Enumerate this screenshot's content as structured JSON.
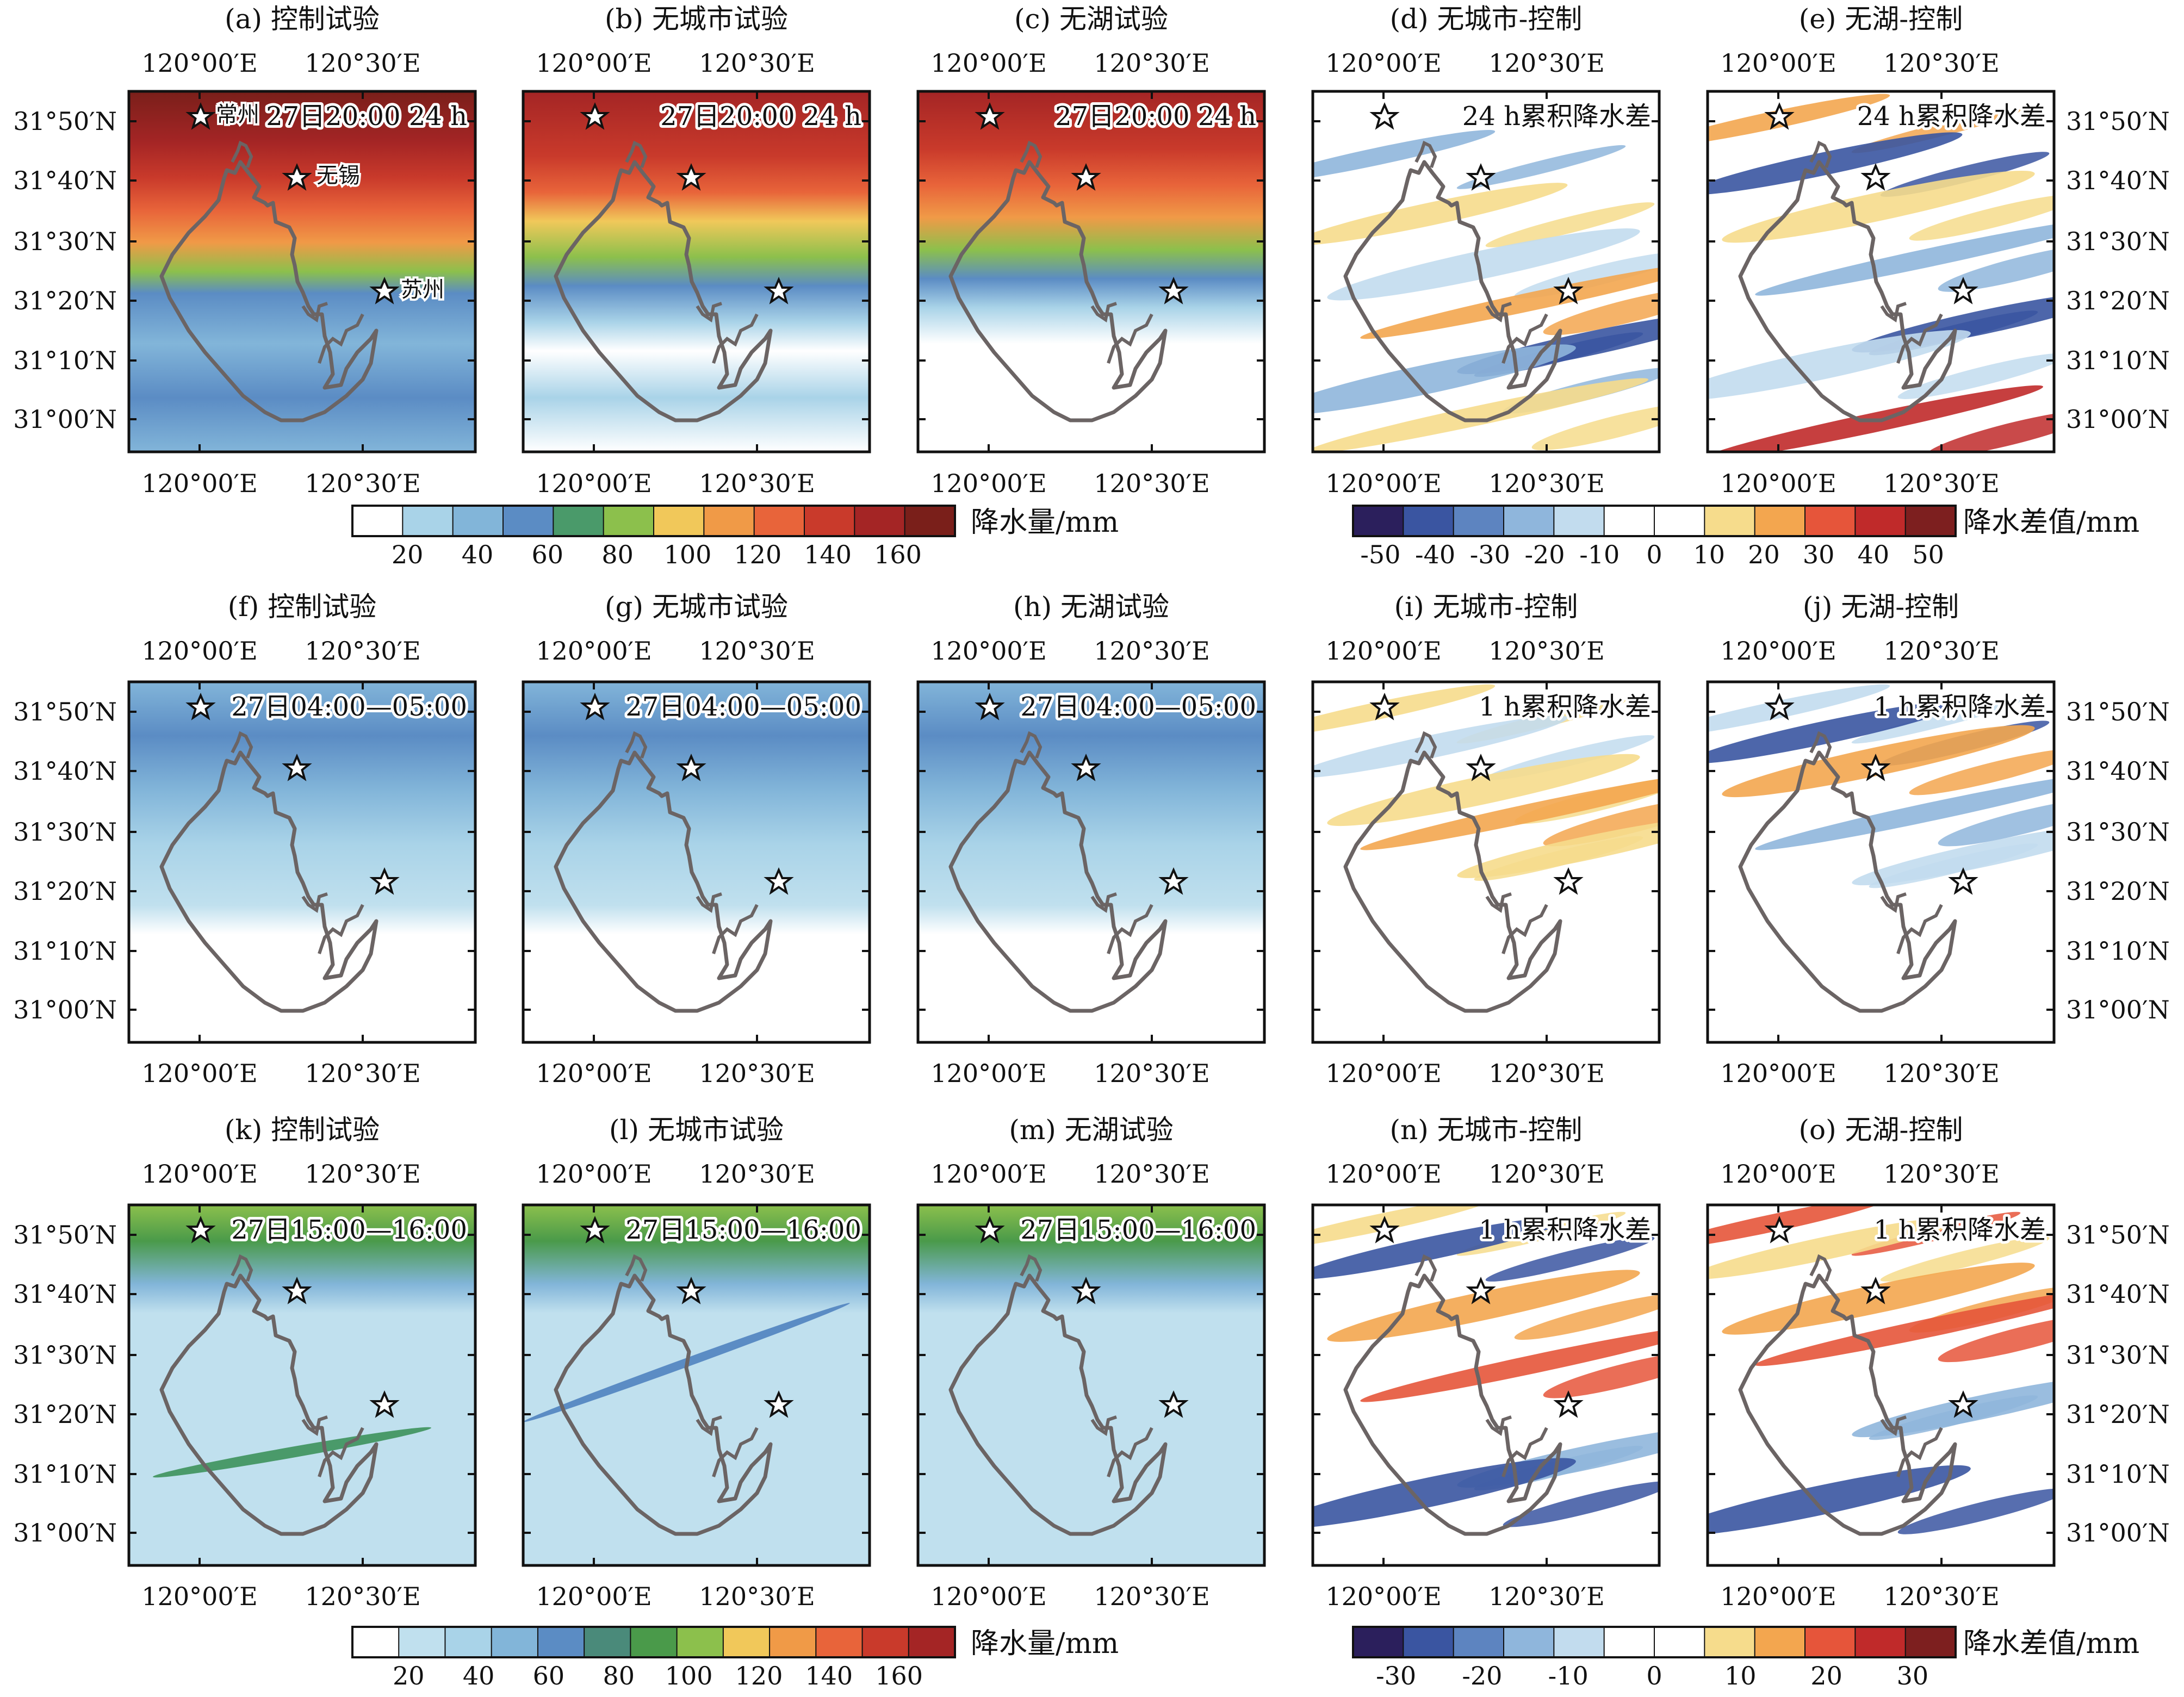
{
  "figure": {
    "row_coords": {
      "lon_ticks": [
        "120°00′E",
        "120°30′E"
      ],
      "lat_ticks": [
        "31°50′N",
        "31°40′N",
        "31°30′N",
        "31°20′N",
        "31°10′N",
        "31°00′N"
      ]
    },
    "panels": [
      {
        "id": "a",
        "title": "(a) 控制试验",
        "annotation": "27日20:00 24 h",
        "kind": "precip",
        "row": 0,
        "col": 0,
        "cities": [
          "常州",
          "无锡",
          "苏州"
        ]
      },
      {
        "id": "b",
        "title": "(b) 无城市试验",
        "annotation": "27日20:00 24 h",
        "kind": "precip",
        "row": 0,
        "col": 1
      },
      {
        "id": "c",
        "title": "(c) 无湖试验",
        "annotation": "27日20:00 24 h",
        "kind": "precip",
        "row": 0,
        "col": 2
      },
      {
        "id": "d",
        "title": "(d) 无城市-控制",
        "annotation": "24 h累积降水差",
        "kind": "diff",
        "row": 0,
        "col": 3
      },
      {
        "id": "e",
        "title": "(e) 无湖-控制",
        "annotation": "24 h累积降水差",
        "kind": "diff",
        "row": 0,
        "col": 4
      },
      {
        "id": "f",
        "title": "(f) 控制试验",
        "annotation": "27日04:00—05:00",
        "kind": "precip",
        "row": 1,
        "col": 0
      },
      {
        "id": "g",
        "title": "(g) 无城市试验",
        "annotation": "27日04:00—05:00",
        "kind": "precip",
        "row": 1,
        "col": 1
      },
      {
        "id": "h",
        "title": "(h) 无湖试验",
        "annotation": "27日04:00—05:00",
        "kind": "precip",
        "row": 1,
        "col": 2
      },
      {
        "id": "i",
        "title": "(i) 无城市-控制",
        "annotation": "1 h累积降水差",
        "kind": "diff",
        "row": 1,
        "col": 3
      },
      {
        "id": "j",
        "title": "(j) 无湖-控制",
        "annotation": "1 h累积降水差",
        "kind": "diff",
        "row": 1,
        "col": 4
      },
      {
        "id": "k",
        "title": "(k) 控制试验",
        "annotation": "27日15:00—16:00",
        "kind": "precip",
        "row": 2,
        "col": 0
      },
      {
        "id": "l",
        "title": "(l) 无城市试验",
        "annotation": "27日15:00—16:00",
        "kind": "precip",
        "row": 2,
        "col": 1
      },
      {
        "id": "m",
        "title": "(m) 无湖试验",
        "annotation": "27日15:00—16:00",
        "kind": "precip",
        "row": 2,
        "col": 2
      },
      {
        "id": "n",
        "title": "(n) 无城市-控制",
        "annotation": "1 h累积降水差",
        "kind": "diff",
        "row": 2,
        "col": 3
      },
      {
        "id": "o",
        "title": "(o) 无湖-控制",
        "annotation": "1 h累积降水差",
        "kind": "diff",
        "row": 2,
        "col": 4
      }
    ],
    "colorbars": [
      {
        "id": "cb1",
        "label": "降水量/mm",
        "ticks": [
          "20",
          "40",
          "60",
          "80",
          "100",
          "120",
          "140",
          "160"
        ],
        "colors": [
          "#ffffff",
          "#a9d3e8",
          "#82b5d9",
          "#5b8cc4",
          "#4a9a6a",
          "#8cc04c",
          "#f1c85a",
          "#f09a47",
          "#e8643a",
          "#c93a2b",
          "#a42525",
          "#7a1f1a"
        ]
      },
      {
        "id": "cb2",
        "label": "降水差值/mm",
        "ticks": [
          "-50",
          "-40",
          "-30",
          "-20",
          "-10",
          "0",
          "10",
          "20",
          "30",
          "40",
          "50"
        ],
        "colors": [
          "#2b1f5c",
          "#3a55a1",
          "#5d84c0",
          "#8fb6dc",
          "#c2dcee",
          "#ffffff",
          "#ffffff",
          "#f6dc8c",
          "#f3a64f",
          "#e6553a",
          "#c02a2a",
          "#7d1f1f"
        ]
      },
      {
        "id": "cb3",
        "label": "降水量/mm",
        "ticks": [
          "20",
          "40",
          "60",
          "80",
          "100",
          "120",
          "140",
          "160"
        ],
        "colors": [
          "#ffffff",
          "#c0e0ee",
          "#a9d3e8",
          "#82b5d9",
          "#5b8cc4",
          "#4a8a7a",
          "#4a9a4a",
          "#8cc04c",
          "#f1c85a",
          "#f09a47",
          "#e8643a",
          "#c93a2b",
          "#a42525"
        ]
      },
      {
        "id": "cb4",
        "label": "降水差值/mm",
        "ticks": [
          "-30",
          "-20",
          "-10",
          "0",
          "10",
          "20",
          "30"
        ],
        "colors": [
          "#2b1f5c",
          "#3a55a1",
          "#5d84c0",
          "#8fb6dc",
          "#c2dcee",
          "#ffffff",
          "#ffffff",
          "#f6dc8c",
          "#f3a64f",
          "#e6553a",
          "#c02a2a",
          "#7d1f1f"
        ]
      }
    ]
  },
  "chart_data": [
    {
      "type": "heatmap",
      "title": "(a) 控制试验",
      "annotation": "27日20:00 24 h",
      "units": "mm",
      "xlabel": "",
      "ylabel": "",
      "x_ticks": [
        "120°00′E",
        "120°30′E"
      ],
      "y_ticks": [
        "31°50′N",
        "31°40′N",
        "31°30′N",
        "31°20′N",
        "31°10′N",
        "31°00′N"
      ],
      "approx_ranges": {
        "north": "140-160+",
        "central": "80-120",
        "south": "20-40"
      }
    },
    {
      "type": "heatmap",
      "title": "(b) 无城市试验",
      "annotation": "27日20:00 24 h",
      "units": "mm",
      "approx_ranges": {
        "north": "120-160",
        "central": "60-100",
        "south": "0-40"
      }
    },
    {
      "type": "heatmap",
      "title": "(c) 无湖试验",
      "annotation": "27日20:00 24 h",
      "units": "mm",
      "approx_ranges": {
        "north": "140-160+",
        "central": "60-100",
        "south": "0-40"
      }
    },
    {
      "type": "heatmap",
      "title": "(d) 无城市-控制",
      "annotation": "24 h累积降水差",
      "units": "mm",
      "value_range": [
        -50,
        50
      ]
    },
    {
      "type": "heatmap",
      "title": "(e) 无湖-控制",
      "annotation": "24 h累积降水差",
      "units": "mm",
      "value_range": [
        -50,
        50
      ]
    },
    {
      "type": "heatmap",
      "title": "(f) 控制试验",
      "annotation": "27日04:00—05:00",
      "units": "mm"
    },
    {
      "type": "heatmap",
      "title": "(g) 无城市试验",
      "annotation": "27日04:00—05:00",
      "units": "mm"
    },
    {
      "type": "heatmap",
      "title": "(h) 无湖试验",
      "annotation": "27日04:00—05:00",
      "units": "mm"
    },
    {
      "type": "heatmap",
      "title": "(i) 无城市-控制",
      "annotation": "1 h累积降水差",
      "units": "mm",
      "value_range": [
        -30,
        30
      ]
    },
    {
      "type": "heatmap",
      "title": "(j) 无湖-控制",
      "annotation": "1 h累积降水差",
      "units": "mm",
      "value_range": [
        -30,
        30
      ]
    },
    {
      "type": "heatmap",
      "title": "(k) 控制试验",
      "annotation": "27日15:00—16:00",
      "units": "mm"
    },
    {
      "type": "heatmap",
      "title": "(l) 无城市试验",
      "annotation": "27日15:00—16:00",
      "units": "mm"
    },
    {
      "type": "heatmap",
      "title": "(m) 无湖试验",
      "annotation": "27日15:00—16:00",
      "units": "mm"
    },
    {
      "type": "heatmap",
      "title": "(n) 无城市-控制",
      "annotation": "1 h累积降水差",
      "units": "mm",
      "value_range": [
        -30,
        30
      ]
    },
    {
      "type": "heatmap",
      "title": "(o) 无湖-控制",
      "annotation": "1 h累积降水差",
      "units": "mm",
      "value_range": [
        -30,
        30
      ]
    }
  ]
}
